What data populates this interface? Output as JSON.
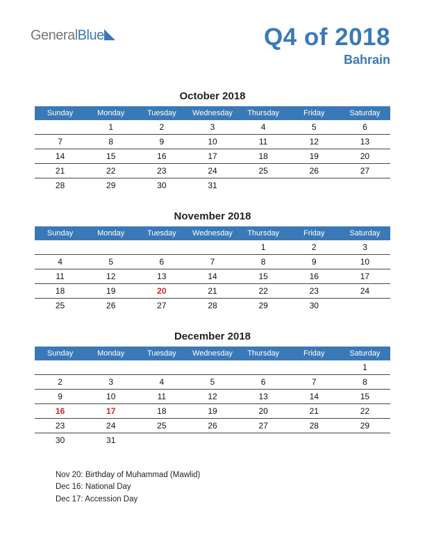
{
  "logo": {
    "part1": "General",
    "part2": "Blue"
  },
  "heading": {
    "title": "Q4 of 2018",
    "subtitle": "Bahrain"
  },
  "colors": {
    "brand": "#3a79b7",
    "holiday": "#d62424",
    "text": "#111111",
    "border": "#444444",
    "background": "#ffffff"
  },
  "dayHeaders": [
    "Sunday",
    "Monday",
    "Tuesday",
    "Wednesday",
    "Thursday",
    "Friday",
    "Saturday"
  ],
  "months": [
    {
      "title": "October 2018",
      "weeks": [
        [
          {
            "d": "",
            "h": false
          },
          {
            "d": "1",
            "h": false
          },
          {
            "d": "2",
            "h": false
          },
          {
            "d": "3",
            "h": false
          },
          {
            "d": "4",
            "h": false
          },
          {
            "d": "5",
            "h": false
          },
          {
            "d": "6",
            "h": false
          }
        ],
        [
          {
            "d": "7",
            "h": false
          },
          {
            "d": "8",
            "h": false
          },
          {
            "d": "9",
            "h": false
          },
          {
            "d": "10",
            "h": false
          },
          {
            "d": "11",
            "h": false
          },
          {
            "d": "12",
            "h": false
          },
          {
            "d": "13",
            "h": false
          }
        ],
        [
          {
            "d": "14",
            "h": false
          },
          {
            "d": "15",
            "h": false
          },
          {
            "d": "16",
            "h": false
          },
          {
            "d": "17",
            "h": false
          },
          {
            "d": "18",
            "h": false
          },
          {
            "d": "19",
            "h": false
          },
          {
            "d": "20",
            "h": false
          }
        ],
        [
          {
            "d": "21",
            "h": false
          },
          {
            "d": "22",
            "h": false
          },
          {
            "d": "23",
            "h": false
          },
          {
            "d": "24",
            "h": false
          },
          {
            "d": "25",
            "h": false
          },
          {
            "d": "26",
            "h": false
          },
          {
            "d": "27",
            "h": false
          }
        ],
        [
          {
            "d": "28",
            "h": false
          },
          {
            "d": "29",
            "h": false
          },
          {
            "d": "30",
            "h": false
          },
          {
            "d": "31",
            "h": false
          },
          {
            "d": "",
            "h": false
          },
          {
            "d": "",
            "h": false
          },
          {
            "d": "",
            "h": false
          }
        ]
      ]
    },
    {
      "title": "November 2018",
      "weeks": [
        [
          {
            "d": "",
            "h": false
          },
          {
            "d": "",
            "h": false
          },
          {
            "d": "",
            "h": false
          },
          {
            "d": "",
            "h": false
          },
          {
            "d": "1",
            "h": false
          },
          {
            "d": "2",
            "h": false
          },
          {
            "d": "3",
            "h": false
          }
        ],
        [
          {
            "d": "4",
            "h": false
          },
          {
            "d": "5",
            "h": false
          },
          {
            "d": "6",
            "h": false
          },
          {
            "d": "7",
            "h": false
          },
          {
            "d": "8",
            "h": false
          },
          {
            "d": "9",
            "h": false
          },
          {
            "d": "10",
            "h": false
          }
        ],
        [
          {
            "d": "11",
            "h": false
          },
          {
            "d": "12",
            "h": false
          },
          {
            "d": "13",
            "h": false
          },
          {
            "d": "14",
            "h": false
          },
          {
            "d": "15",
            "h": false
          },
          {
            "d": "16",
            "h": false
          },
          {
            "d": "17",
            "h": false
          }
        ],
        [
          {
            "d": "18",
            "h": false
          },
          {
            "d": "19",
            "h": false
          },
          {
            "d": "20",
            "h": true
          },
          {
            "d": "21",
            "h": false
          },
          {
            "d": "22",
            "h": false
          },
          {
            "d": "23",
            "h": false
          },
          {
            "d": "24",
            "h": false
          }
        ],
        [
          {
            "d": "25",
            "h": false
          },
          {
            "d": "26",
            "h": false
          },
          {
            "d": "27",
            "h": false
          },
          {
            "d": "28",
            "h": false
          },
          {
            "d": "29",
            "h": false
          },
          {
            "d": "30",
            "h": false
          },
          {
            "d": "",
            "h": false
          }
        ]
      ]
    },
    {
      "title": "December 2018",
      "weeks": [
        [
          {
            "d": "",
            "h": false
          },
          {
            "d": "",
            "h": false
          },
          {
            "d": "",
            "h": false
          },
          {
            "d": "",
            "h": false
          },
          {
            "d": "",
            "h": false
          },
          {
            "d": "",
            "h": false
          },
          {
            "d": "1",
            "h": false
          }
        ],
        [
          {
            "d": "2",
            "h": false
          },
          {
            "d": "3",
            "h": false
          },
          {
            "d": "4",
            "h": false
          },
          {
            "d": "5",
            "h": false
          },
          {
            "d": "6",
            "h": false
          },
          {
            "d": "7",
            "h": false
          },
          {
            "d": "8",
            "h": false
          }
        ],
        [
          {
            "d": "9",
            "h": false
          },
          {
            "d": "10",
            "h": false
          },
          {
            "d": "11",
            "h": false
          },
          {
            "d": "12",
            "h": false
          },
          {
            "d": "13",
            "h": false
          },
          {
            "d": "14",
            "h": false
          },
          {
            "d": "15",
            "h": false
          }
        ],
        [
          {
            "d": "16",
            "h": true
          },
          {
            "d": "17",
            "h": true
          },
          {
            "d": "18",
            "h": false
          },
          {
            "d": "19",
            "h": false
          },
          {
            "d": "20",
            "h": false
          },
          {
            "d": "21",
            "h": false
          },
          {
            "d": "22",
            "h": false
          }
        ],
        [
          {
            "d": "23",
            "h": false
          },
          {
            "d": "24",
            "h": false
          },
          {
            "d": "25",
            "h": false
          },
          {
            "d": "26",
            "h": false
          },
          {
            "d": "27",
            "h": false
          },
          {
            "d": "28",
            "h": false
          },
          {
            "d": "29",
            "h": false
          }
        ],
        [
          {
            "d": "30",
            "h": false
          },
          {
            "d": "31",
            "h": false
          },
          {
            "d": "",
            "h": false
          },
          {
            "d": "",
            "h": false
          },
          {
            "d": "",
            "h": false
          },
          {
            "d": "",
            "h": false
          },
          {
            "d": "",
            "h": false
          }
        ]
      ]
    }
  ],
  "notes": [
    "Nov 20: Birthday of Muhammad (Mawlid)",
    "Dec 16: National Day",
    "Dec 17: Accession Day"
  ]
}
